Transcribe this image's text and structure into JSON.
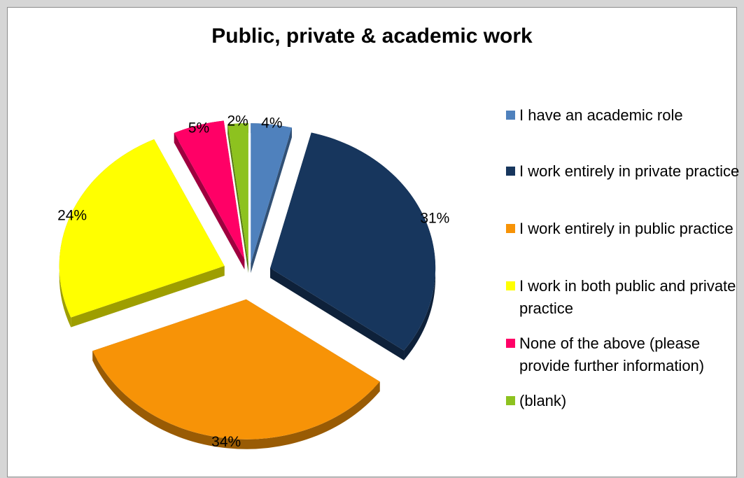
{
  "chart_data": {
    "type": "pie",
    "title": "Public, private & academic work",
    "slices": [
      {
        "label": "I have an academic role",
        "value": 4,
        "display": "4%",
        "color": "#4f81bd"
      },
      {
        "label": "I work entirely in private practice",
        "value": 31,
        "display": "31%",
        "color": "#17365d"
      },
      {
        "label": "I work entirely in public practice",
        "value": 34,
        "display": "34%",
        "color": "#f79307"
      },
      {
        "label": "I work in both public and private practice",
        "value": 24,
        "display": "24%",
        "color": "#ffff00"
      },
      {
        "label": "None of the above (please provide further information)",
        "value": 5,
        "display": "5%",
        "color": "#ff0066"
      },
      {
        "label": "(blank)",
        "value": 2,
        "display": "2%",
        "color": "#8dc21f"
      }
    ],
    "legend_position": "right",
    "start_angle_deg": 0,
    "direction": "clockwise",
    "exploded": true,
    "three_d": true
  }
}
